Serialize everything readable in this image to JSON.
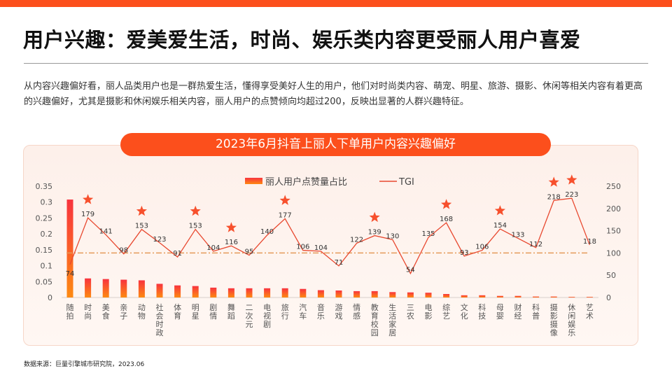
{
  "title": "用户兴趣：爱美爱生活，时尚、娱乐类内容更受丽人用户喜爱",
  "description": "从内容兴趣偏好看，丽人品类用户也是一群热爱生活，懂得享受美好人生的用户，他们对时尚类内容、萌宠、明星、旅游、摄影、休闲等相关内容有着更高的兴趣偏好，尤其是摄影和休闲娱乐相关内容，丽人用户的点赞倾向均超过200，反映出显著的人群兴趣特征。",
  "source": "数据来源：巨量引擎城市研究院，2023.06",
  "colors": {
    "accent": "#fc4f1c",
    "bar_top": "#f8333e",
    "bar_bottom": "#fd8a12",
    "line": "#e8482f",
    "reference": "#e59a5a",
    "star": "#f7502d"
  },
  "chart_data": {
    "type": "bar+line",
    "title": "2023年6月抖音上丽人下单用户内容兴趣偏好",
    "legend": "top-center",
    "categories": [
      "随拍",
      "时尚",
      "美食",
      "亲子",
      "动物",
      "社会时政",
      "体育",
      "明星",
      "剧情",
      "舞蹈",
      "二次元",
      "电视剧",
      "旅行",
      "汽车",
      "音乐",
      "游戏",
      "情感",
      "教育校园",
      "生活家居",
      "三农",
      "电影",
      "综艺",
      "文化",
      "科技",
      "母婴",
      "财经",
      "科普",
      "摄影摄像",
      "休闲娱乐",
      "艺术"
    ],
    "series": [
      {
        "name": "丽人用户点赞量占比",
        "type": "bar",
        "axis": "left",
        "values": [
          0.308,
          0.06,
          0.058,
          0.056,
          0.054,
          0.043,
          0.038,
          0.036,
          0.031,
          0.029,
          0.029,
          0.029,
          0.029,
          0.027,
          0.023,
          0.022,
          0.02,
          0.02,
          0.017,
          0.016,
          0.015,
          0.011,
          0.007,
          0.007,
          0.005,
          0.005,
          0.003,
          0.003,
          0.002,
          0.002
        ]
      },
      {
        "name": "TGI",
        "type": "line",
        "axis": "right",
        "values": [
          74,
          179,
          141,
          98,
          153,
          123,
          91,
          153,
          104,
          116,
          95,
          140,
          177,
          106,
          104,
          71,
          122,
          139,
          130,
          54,
          135,
          168,
          93,
          106,
          154,
          133,
          112,
          218,
          223,
          118
        ]
      }
    ],
    "starred": [
      "时尚",
      "动物",
      "明星",
      "舞蹈",
      "旅行",
      "教育校园",
      "综艺",
      "母婴",
      "摄影摄像",
      "休闲娱乐"
    ],
    "reference_line": 100,
    "left_axis": {
      "range": [
        0,
        0.35
      ],
      "ticks": [
        "0",
        "0.05",
        "0.1",
        "0.15",
        "0.2",
        "0.25",
        "0.3",
        "0.35"
      ]
    },
    "right_axis": {
      "range": [
        0,
        250
      ],
      "ticks": [
        "0",
        "50",
        "100",
        "150",
        "200",
        "250"
      ]
    }
  }
}
